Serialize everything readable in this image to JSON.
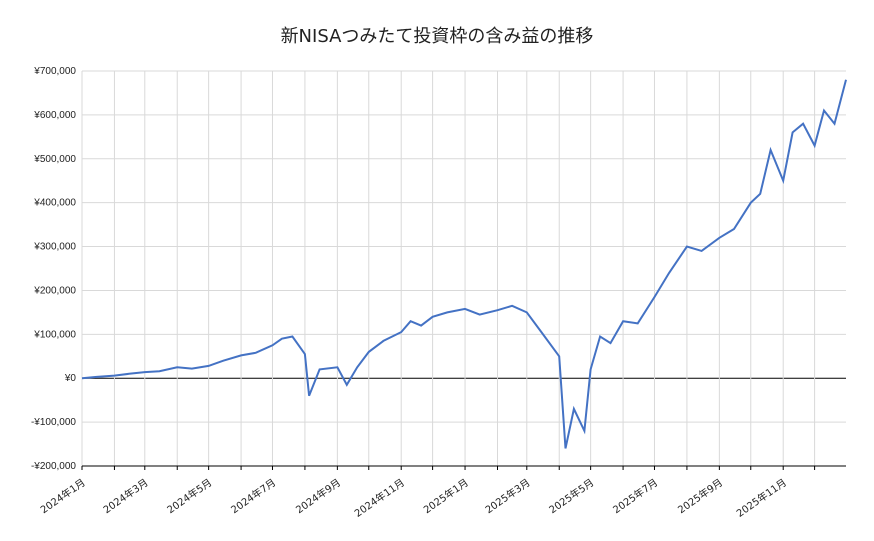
{
  "chart_data": {
    "type": "line",
    "title": "新NISAつみたて投資枠の含み益の推移",
    "xlabel": "",
    "ylabel": "",
    "ylim": [
      -200000,
      700000
    ],
    "y_ticks": [
      -200000,
      -100000,
      0,
      100000,
      200000,
      300000,
      400000,
      500000,
      600000,
      700000
    ],
    "y_tick_labels": [
      "-¥200,000",
      "-¥100,000",
      "¥0",
      "¥100,000",
      "¥200,000",
      "¥300,000",
      "¥400,000",
      "¥500,000",
      "¥600,000",
      "¥700,000"
    ],
    "x_tick_labels": [
      "2024年1月",
      "2024年3月",
      "2024年5月",
      "2024年7月",
      "2024年9月",
      "2024年11月",
      "2025年1月",
      "2025年3月",
      "2025年5月",
      "2025年7月",
      "2025年9月",
      "2025年11月"
    ],
    "grid": true,
    "line_color": "#4472C4",
    "series": [
      {
        "x": [
          "2024-01-01",
          "2024-01-15",
          "2024-02-01",
          "2024-02-15",
          "2024-03-01",
          "2024-03-15",
          "2024-04-01",
          "2024-04-15",
          "2024-05-01",
          "2024-05-15",
          "2024-06-01",
          "2024-06-15",
          "2024-07-01",
          "2024-07-10",
          "2024-07-20",
          "2024-08-01",
          "2024-08-05",
          "2024-08-15",
          "2024-09-01",
          "2024-09-10",
          "2024-09-20",
          "2024-10-01",
          "2024-10-15",
          "2024-11-01",
          "2024-11-10",
          "2024-11-20",
          "2024-12-01",
          "2024-12-15",
          "2025-01-01",
          "2025-01-15",
          "2025-02-01",
          "2025-02-15",
          "2025-03-01",
          "2025-03-15",
          "2025-04-01",
          "2025-04-07",
          "2025-04-15",
          "2025-04-25",
          "2025-05-01",
          "2025-05-10",
          "2025-05-20",
          "2025-06-01",
          "2025-06-15",
          "2025-07-01",
          "2025-07-15",
          "2025-08-01",
          "2025-08-15",
          "2025-09-01",
          "2025-09-15",
          "2025-10-01",
          "2025-10-10",
          "2025-10-20",
          "2025-11-01",
          "2025-11-10",
          "2025-11-20",
          "2025-12-01",
          "2025-12-10",
          "2025-12-20",
          "2025-12-31"
        ],
        "values": [
          0,
          3000,
          6000,
          10000,
          14000,
          16000,
          25000,
          22000,
          28000,
          40000,
          52000,
          58000,
          75000,
          90000,
          95000,
          55000,
          -40000,
          20000,
          25000,
          -15000,
          25000,
          60000,
          85000,
          105000,
          130000,
          120000,
          140000,
          150000,
          158000,
          145000,
          155000,
          165000,
          150000,
          105000,
          50000,
          -160000,
          -70000,
          -120000,
          20000,
          95000,
          80000,
          130000,
          125000,
          185000,
          240000,
          300000,
          290000,
          320000,
          340000,
          400000,
          420000,
          520000,
          450000,
          560000,
          580000,
          530000,
          610000,
          580000,
          680000
        ]
      }
    ]
  }
}
